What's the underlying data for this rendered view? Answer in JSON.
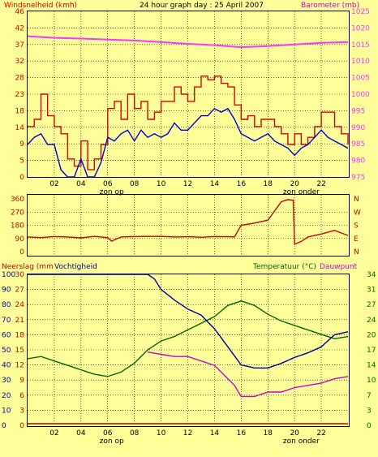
{
  "header": {
    "left_label": "Windsnelheid (kmh)",
    "title": "24 hour graph day : 25 April 2007",
    "right_label": "Barometer (mb)"
  },
  "panel_wind": {
    "left_ticks": [
      "46",
      "42",
      "37",
      "32",
      "28",
      "23",
      "18",
      "14",
      "9",
      "5",
      "0"
    ],
    "right_ticks": [
      "1025",
      "1020",
      "1015",
      "1010",
      "1005",
      "1000",
      "995",
      "990",
      "985",
      "980",
      "975"
    ],
    "x_ticks": [
      "02",
      "04",
      "06",
      "08",
      "10",
      "12",
      "14",
      "16",
      "18",
      "20",
      "22"
    ],
    "sunrise_label": "zon op",
    "sunset_label": "zon onder"
  },
  "panel_dir": {
    "left_ticks": [
      "360",
      "270",
      "180",
      "90",
      "0"
    ],
    "right_ticks": [
      "N",
      "W",
      "S",
      "E",
      "N"
    ]
  },
  "panel_bottom": {
    "left_label": "Neerslag (mm",
    "left_label2": "Vochtigheid",
    "right_label": "Temperatuur (°C)",
    "right_label2": "Dauwpunt",
    "rain_ticks": [
      "30",
      "27",
      "24",
      "21",
      "18",
      "15",
      "12",
      "9",
      "6",
      "3",
      "0"
    ],
    "hum_ticks": [
      "100",
      "90",
      "80",
      "70",
      "60",
      "50",
      "40",
      "30",
      "20",
      "10",
      "0"
    ],
    "temp_ticks": [
      "34",
      "31",
      "27",
      "24",
      "20",
      "17",
      "14",
      "10",
      "7",
      "3",
      "0"
    ],
    "x_ticks": [
      "02",
      "04",
      "06",
      "08",
      "10",
      "12",
      "14",
      "16",
      "18",
      "20",
      "22"
    ],
    "sunrise_label": "zon op",
    "sunset_label": "zon onder"
  },
  "colors": {
    "background": "#ffff99",
    "wind_gust": "#dd0000",
    "wind_avg": "#0000cc",
    "barometer": "#ff33ff",
    "direction": "#cc0000",
    "humidity": "#000099",
    "temperature": "#006600",
    "dewpoint": "#cc00cc",
    "rain": "#cc0000"
  },
  "chart_data": [
    {
      "type": "line",
      "title": "24 hour graph day : 25 April 2007",
      "xlabel": "",
      "x_range": [
        0,
        24
      ],
      "y_left_label": "Windsnelheid (kmh)",
      "y_left_range": [
        0,
        46
      ],
      "y_right_label": "Barometer (mb)",
      "y_right_range": [
        975,
        1025
      ],
      "series": [
        {
          "name": "",
          "axis": "left",
          "color": "#dd0000",
          "x": [
            0,
            0.5,
            1,
            1.5,
            2,
            2.5,
            3,
            3.5,
            4,
            4.5,
            5,
            5.5,
            6,
            6.5,
            7,
            7.5,
            8,
            8.5,
            9,
            9.5,
            10,
            10.5,
            11,
            11.5,
            12,
            12.5,
            13,
            13.5,
            14,
            14.5,
            15,
            15.5,
            16,
            16.5,
            17,
            17.5,
            18,
            18.5,
            19,
            19.5,
            20,
            20.5,
            21,
            21.5,
            22,
            22.5,
            23,
            23.5,
            24
          ],
          "y": [
            14,
            16,
            23,
            17,
            14,
            12,
            5,
            3,
            10,
            2,
            5,
            9,
            19,
            21,
            16,
            23,
            19,
            21,
            16,
            18,
            21,
            21,
            25,
            23,
            21,
            25,
            28,
            27,
            28,
            26,
            25,
            20,
            16,
            17,
            14,
            16,
            16,
            14,
            12,
            9,
            12,
            9,
            11,
            14,
            18,
            18,
            14,
            12,
            9
          ]
        },
        {
          "name": "",
          "axis": "left",
          "color": "#0000cc",
          "x": [
            0,
            0.5,
            1,
            1.5,
            2,
            2.5,
            3,
            3.5,
            4,
            4.5,
            5,
            5.5,
            6,
            6.5,
            7,
            7.5,
            8,
            8.5,
            9,
            9.5,
            10,
            10.5,
            11,
            11.5,
            12,
            12.5,
            13,
            13.5,
            14,
            14.5,
            15,
            15.5,
            16,
            16.5,
            17,
            17.5,
            18,
            18.5,
            19,
            19.5,
            20,
            20.5,
            21,
            21.5,
            22,
            22.5,
            23,
            23.5,
            24
          ],
          "y": [
            9,
            11,
            12,
            9,
            9,
            2,
            0,
            0,
            5,
            0,
            0,
            4,
            11,
            10,
            12,
            13,
            10,
            13,
            11,
            12,
            11,
            12,
            15,
            13,
            13,
            15,
            17,
            17,
            19,
            18,
            19,
            16,
            12,
            11,
            10,
            11,
            12,
            10,
            9,
            8,
            6,
            8,
            9,
            11,
            13,
            11,
            10,
            9,
            8
          ]
        },
        {
          "name": "",
          "axis": "right",
          "color": "#ff33ff",
          "x": [
            0,
            2,
            4,
            6,
            8,
            10,
            12,
            14,
            16,
            18,
            20,
            22,
            24
          ],
          "y": [
            1017.5,
            1017,
            1016.8,
            1016.5,
            1016.2,
            1015.7,
            1015.2,
            1014.8,
            1014.2,
            1014.5,
            1015,
            1015.5,
            1015.7
          ]
        }
      ],
      "annotations": [
        "zon op",
        "zon onder"
      ]
    },
    {
      "type": "line",
      "title": "",
      "x_range": [
        0,
        24
      ],
      "y_left_range": [
        0,
        360
      ],
      "y_right_labels": [
        "N",
        "W",
        "S",
        "E",
        "N"
      ],
      "series": [
        {
          "name": "",
          "color": "#cc0000",
          "x": [
            0,
            1,
            2,
            3,
            4,
            5,
            6,
            6.3,
            7,
            8,
            9,
            10,
            11,
            12,
            13,
            14,
            15,
            15.5,
            16,
            17,
            18,
            19,
            19.5,
            19.9,
            20,
            20.5,
            21,
            22,
            23,
            24
          ],
          "y": [
            100,
            96,
            103,
            100,
            94,
            104,
            95,
            72,
            100,
            103,
            104,
            104,
            100,
            102,
            98,
            103,
            102,
            100,
            180,
            195,
            215,
            340,
            355,
            350,
            50,
            70,
            100,
            120,
            145,
            110
          ]
        }
      ]
    },
    {
      "type": "line",
      "title": "",
      "x_range": [
        0,
        24
      ],
      "y_left_labels": [
        "Neerslag (mm",
        "Vochtigheid"
      ],
      "y_right_labels": [
        "Temperatuur (°C)",
        "Dauwpunt"
      ],
      "rain_range": [
        0,
        30
      ],
      "humidity_range": [
        0,
        100
      ],
      "temp_range": [
        0,
        34
      ],
      "series": [
        {
          "name": "Vochtigheid",
          "axis": "humidity",
          "color": "#000099",
          "x": [
            0,
            2,
            4,
            6,
            8,
            9,
            9.5,
            10,
            11,
            12,
            13,
            14,
            15,
            16,
            17,
            18,
            19,
            20,
            21,
            22,
            23,
            24
          ],
          "y": [
            100,
            100,
            100,
            100,
            100,
            100,
            97,
            90,
            83,
            77,
            73,
            64,
            52,
            40,
            38,
            38,
            41,
            45,
            48,
            52,
            60,
            62
          ]
        },
        {
          "name": "Temperatuur (°C)",
          "axis": "temp",
          "color": "#006600",
          "x": [
            0,
            1,
            2,
            3,
            4,
            5,
            6,
            7,
            8,
            9,
            10,
            11,
            12,
            13,
            14,
            15,
            16,
            17,
            18,
            19,
            20,
            21,
            22,
            23,
            24
          ],
          "y": [
            15,
            15.5,
            14.5,
            13.5,
            12.5,
            11.5,
            11,
            12,
            14,
            17,
            19,
            20,
            21.5,
            23,
            24.5,
            27,
            28,
            27,
            25,
            23.5,
            22.5,
            21.5,
            20.5,
            19.5,
            20
          ]
        },
        {
          "name": "Dauwpunt",
          "axis": "temp",
          "color": "#cc00cc",
          "x": [
            0,
            9,
            10,
            11,
            12,
            13,
            14,
            15,
            15.5,
            16,
            17,
            18,
            19,
            20,
            21,
            22,
            23,
            24
          ],
          "y": [
            null,
            16.5,
            16,
            15.5,
            15.5,
            14.5,
            13.5,
            10.5,
            9,
            6.5,
            6.5,
            7.5,
            7.5,
            8.5,
            9,
            9.5,
            10.5,
            11
          ]
        },
        {
          "name": "Neerslag (mm",
          "axis": "rain",
          "color": "#cc0000",
          "x": [
            0,
            24
          ],
          "y": [
            0,
            0
          ]
        }
      ],
      "annotations": [
        "zon op",
        "zon onder"
      ]
    }
  ]
}
